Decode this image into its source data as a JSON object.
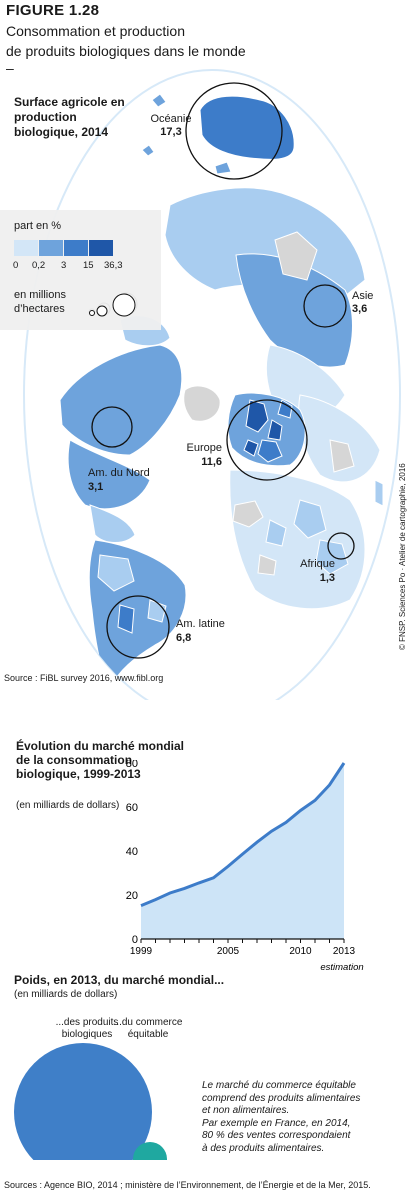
{
  "header": {
    "figure_label": "FIGURE 1.28",
    "title_line1": "Consommation et production",
    "title_line2": "de produits biologiques dans le monde",
    "dash": "–"
  },
  "map": {
    "title": "Surface agricole en production biologique, 2014",
    "legend": {
      "share_title": "part en %",
      "share_ticks": [
        "0",
        "0,2",
        "3",
        "15",
        "36,3"
      ],
      "share_colors": [
        "#d3e6f7",
        "#a9cdf0",
        "#6ea3dc",
        "#3d7cc9",
        "#1f57a8"
      ],
      "size_title_line1": "en millions",
      "size_title_line2": "d’hectares"
    },
    "regions": [
      {
        "name": "Océanie",
        "value": "17,3",
        "hectares_million": 17.3
      },
      {
        "name": "Asie",
        "value": "3,6",
        "hectares_million": 3.6
      },
      {
        "name": "Europe",
        "value": "11,6",
        "hectares_million": 11.6
      },
      {
        "name": "Am. du Nord",
        "value": "3,1",
        "hectares_million": 3.1
      },
      {
        "name": "Afrique",
        "value": "1,3",
        "hectares_million": 1.3
      },
      {
        "name": "Am. latine",
        "value": "6,8",
        "hectares_million": 6.8
      }
    ],
    "source": "Source : FiBL survey 2016, www.fibl.org"
  },
  "credit": "© FNSP. Sciences Po · Atelier de cartographie, 2016",
  "chart_data": [
    {
      "type": "area",
      "title": "Évolution du marché mondial de la consommation biologique, 1999-2013",
      "subtitle": "(en milliards de dollars)",
      "x": [
        1999,
        2000,
        2001,
        2002,
        2003,
        2004,
        2005,
        2006,
        2007,
        2008,
        2009,
        2010,
        2011,
        2012,
        2013
      ],
      "values": [
        15.2,
        17.9,
        20.9,
        23,
        25.5,
        27.8,
        33,
        38.6,
        44,
        49,
        53,
        58.4,
        63,
        70,
        80
      ],
      "x_ticks": [
        "1999",
        "2005",
        "2010",
        "2013"
      ],
      "x_note": "estimation",
      "y_ticks": [
        0,
        20,
        40,
        60,
        80
      ],
      "ylim": [
        0,
        80
      ],
      "fill_color": "#cde4f7",
      "line_color": "#3d7cc9"
    },
    {
      "type": "bubble",
      "title": "Poids, en 2013, du marché mondial...",
      "subtitle": "(en milliards de dollars)",
      "categories": [
        "...des produits biologiques",
        "...du commerce équitable"
      ],
      "values": [
        80,
        8
      ],
      "colors": [
        "#3f7fc8",
        "#1fa8a0"
      ]
    }
  ],
  "bubbles": {
    "label_bio_line1": "...des produits",
    "label_bio_line2": "biologiques",
    "label_fair_line1": "...du commerce",
    "label_fair_line2": "équitable",
    "value_bio": "80",
    "value_fair": "8"
  },
  "note": {
    "line1": "Le marché du commerce équitable",
    "line2": "comprend des produits alimentaires",
    "line3": "et non alimentaires.",
    "line4": "Par exemple en France, en 2014,",
    "line5": "80 % des ventes correspondaient",
    "line6": "à des produits alimentaires."
  },
  "footer_source": "Sources : Agence BIO, 2014 ; ministère de l’Environnement, de l’Énergie et de la Mer, 2015."
}
